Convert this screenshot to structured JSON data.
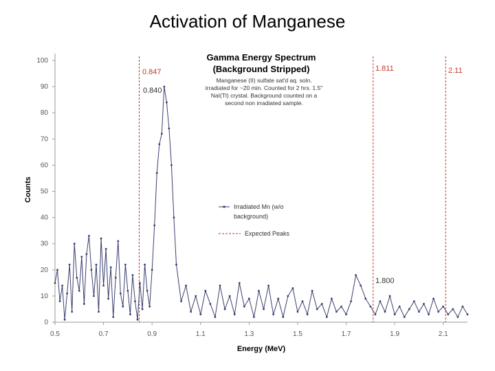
{
  "slide_title": "Activation of Manganese",
  "chart_data": {
    "type": "line",
    "title": "Gamma Energy Spectrum",
    "subtitle": "(Background Stripped)",
    "description": "Manganese (II) sulfate sat'd aq. soln. irradiated for ~20 min. Counted for 2 hrs. 1.5\" NaI(Tl) crystal. Background counted on a second non irradiated sample.",
    "xlabel": "Energy (MeV)",
    "ylabel": "Counts",
    "xlim": [
      0.5,
      2.2
    ],
    "ylim": [
      0,
      100
    ],
    "x_ticks": [
      "0.5",
      "0.7",
      "0.9",
      "1.1",
      "1.3",
      "1.5",
      "1.7",
      "1.9",
      "2.1"
    ],
    "y_ticks": [
      "0",
      "10",
      "20",
      "30",
      "40",
      "50",
      "60",
      "70",
      "80",
      "90",
      "100"
    ],
    "grid": false,
    "legend_position": "center-right",
    "series": [
      {
        "name": "Irradiated Mn (w/o background)",
        "color": "#3a3f6e",
        "x": [
          0.5,
          0.51,
          0.52,
          0.53,
          0.54,
          0.55,
          0.56,
          0.57,
          0.58,
          0.59,
          0.6,
          0.61,
          0.62,
          0.63,
          0.64,
          0.65,
          0.66,
          0.67,
          0.68,
          0.69,
          0.7,
          0.71,
          0.72,
          0.73,
          0.74,
          0.75,
          0.76,
          0.77,
          0.78,
          0.79,
          0.8,
          0.81,
          0.82,
          0.83,
          0.84,
          0.85,
          0.86,
          0.87,
          0.88,
          0.89,
          0.9,
          0.91,
          0.92,
          0.93,
          0.94,
          0.95,
          0.96,
          0.97,
          0.98,
          0.99,
          1.0,
          1.02,
          1.04,
          1.06,
          1.08,
          1.1,
          1.12,
          1.14,
          1.16,
          1.18,
          1.2,
          1.22,
          1.24,
          1.26,
          1.28,
          1.3,
          1.32,
          1.34,
          1.36,
          1.38,
          1.4,
          1.42,
          1.44,
          1.46,
          1.48,
          1.5,
          1.52,
          1.54,
          1.56,
          1.58,
          1.6,
          1.62,
          1.64,
          1.66,
          1.68,
          1.7,
          1.72,
          1.74,
          1.76,
          1.78,
          1.8,
          1.82,
          1.84,
          1.86,
          1.88,
          1.9,
          1.92,
          1.94,
          1.96,
          1.98,
          2.0,
          2.02,
          2.04,
          2.06,
          2.08,
          2.1,
          2.12,
          2.14,
          2.16,
          2.18,
          2.2
        ],
        "y": [
          15,
          20,
          8,
          14,
          1,
          11,
          22,
          4,
          30,
          17,
          12,
          25,
          7,
          26,
          33,
          20,
          10,
          22,
          4,
          32,
          14,
          28,
          9,
          21,
          2,
          17,
          31,
          11,
          6,
          22,
          12,
          3,
          18,
          8,
          1,
          15,
          5,
          22,
          12,
          6,
          20,
          37,
          57,
          68,
          72,
          90,
          84,
          74,
          60,
          40,
          22,
          8,
          14,
          4,
          10,
          3,
          12,
          7,
          2,
          14,
          5,
          10,
          3,
          15,
          6,
          9,
          2,
          12,
          5,
          14,
          3,
          9,
          2,
          10,
          13,
          4,
          8,
          3,
          12,
          5,
          7,
          2,
          9,
          4,
          6,
          3,
          8,
          18,
          14,
          9,
          6,
          3,
          8,
          4,
          10,
          3,
          6,
          2,
          5,
          8,
          4,
          7,
          3,
          9,
          4,
          6,
          3,
          5,
          2,
          6,
          3
        ]
      },
      {
        "name": "Expected Peaks",
        "color": "#c0392b",
        "style": "dashed",
        "x": [
          0.847,
          1.811,
          2.11
        ]
      }
    ],
    "annotations": [
      "0.847",
      "0.840",
      "1.811",
      "2.11",
      "1.800"
    ]
  }
}
